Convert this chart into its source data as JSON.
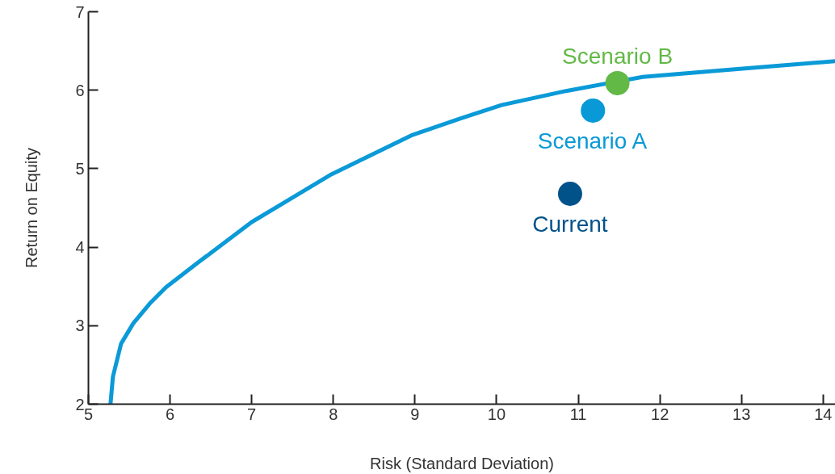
{
  "chart_data": {
    "type": "line",
    "xlabel": "Risk (Standard Deviation)",
    "ylabel": "Return on Equity",
    "xlim": [
      5,
      14.15
    ],
    "ylim": [
      2,
      7
    ],
    "xticks": [
      5,
      6,
      7,
      8,
      9,
      10,
      11,
      12,
      13,
      14
    ],
    "yticks": [
      2,
      3,
      4,
      5,
      6,
      7
    ],
    "grid": false,
    "series": [
      {
        "color": "#0a9ad7",
        "x": [
          5.27,
          5.3,
          5.4,
          5.55,
          5.75,
          5.95,
          6.35,
          7.0,
          7.98,
          8.97,
          9.56,
          10.06,
          10.85,
          11.79,
          12.83,
          14.15
        ],
        "values": [
          2.0,
          2.35,
          2.77,
          3.03,
          3.28,
          3.49,
          3.81,
          4.32,
          4.93,
          5.43,
          5.64,
          5.81,
          5.99,
          6.17,
          6.26,
          6.37
        ]
      },
      {
        "type": "scatter",
        "name": "Current",
        "color": "#02528a",
        "x": [
          10.9
        ],
        "values": [
          4.68
        ]
      },
      {
        "type": "scatter",
        "name": "Scenario A",
        "color": "#0899d6",
        "x": [
          11.18
        ],
        "values": [
          5.74
        ]
      },
      {
        "type": "scatter",
        "name": "Scenario B",
        "color": "#62b946",
        "x": [
          11.48
        ],
        "values": [
          6.09
        ]
      }
    ]
  }
}
